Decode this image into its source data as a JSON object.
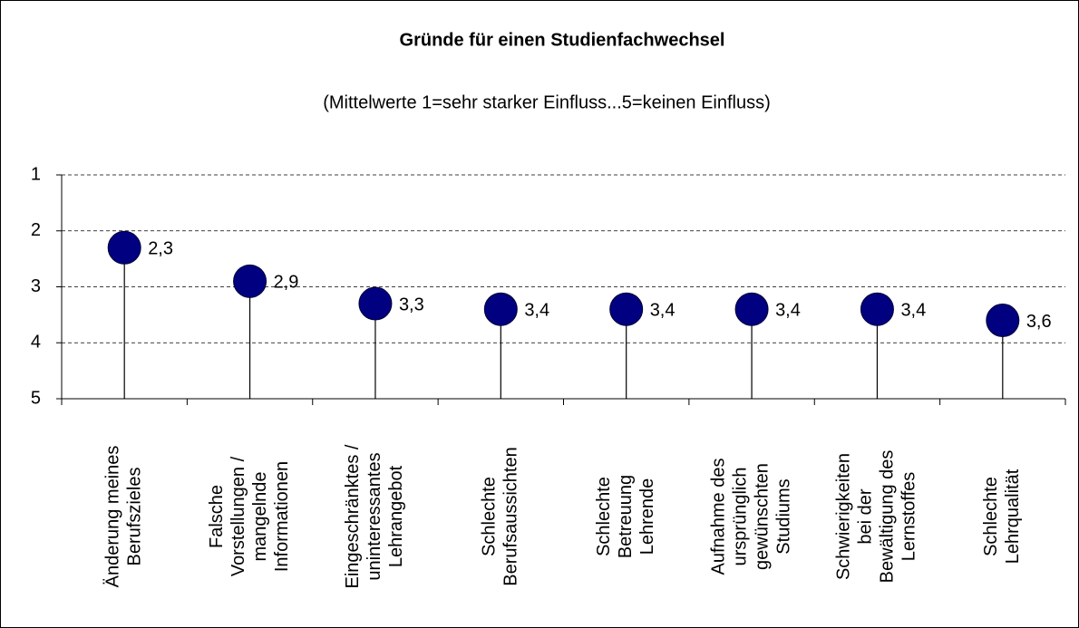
{
  "chart_data": {
    "type": "lollipop",
    "title": "Gründe für einen Studienfachwechsel",
    "subtitle": "(Mittelwerte 1=sehr starker Einfluss...5=keinen Einfluss)",
    "categories": [
      [
        "Änderung meines",
        "Berufszieles"
      ],
      [
        "Falsche",
        "Vorstellungen /",
        "mangelnde",
        "Informationen"
      ],
      [
        "Eingeschränktes /",
        "uninteressantes",
        "Lehrangebot"
      ],
      [
        "Schlechte",
        "Berufsaussichten"
      ],
      [
        "Schlechte",
        "Betreuung",
        "Lehrende"
      ],
      [
        "Aufnahme des",
        "ursprünglich",
        "gewünschten",
        "Studiums"
      ],
      [
        "Schwierigkeiten",
        "bei der",
        "Bewältigung des",
        "Lernstoffes"
      ],
      [
        "Schlechte",
        "Lehrqualität"
      ]
    ],
    "values": [
      2.3,
      2.9,
      3.3,
      3.4,
      3.4,
      3.4,
      3.4,
      3.6
    ],
    "value_labels": [
      "2,3",
      "2,9",
      "3,3",
      "3,4",
      "3,4",
      "3,4",
      "3,4",
      "3,6"
    ],
    "color": "#000080",
    "ylim": [
      1,
      5
    ],
    "y_inverted": true,
    "yticks": [
      1,
      2,
      3,
      4,
      5
    ],
    "grid": true
  }
}
